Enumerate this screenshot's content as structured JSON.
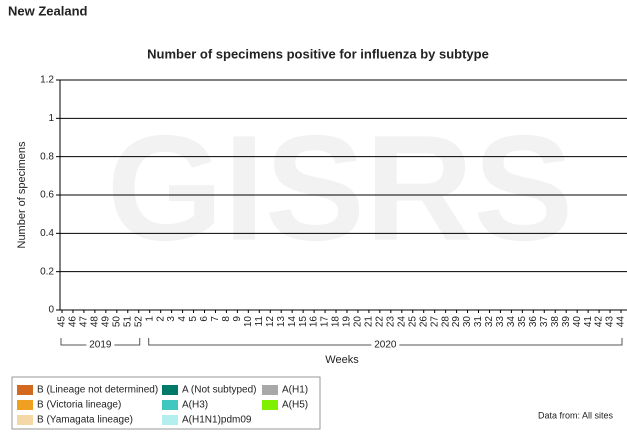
{
  "header": "New Zealand",
  "chart_data": {
    "type": "stacked-bar",
    "title": "Number of specimens positive for influenza by subtype",
    "watermark": "GISRS",
    "xlabel": "Weeks",
    "ylabel": "Number of specimens",
    "note": "Data from: All sites",
    "categories": [
      "45",
      "46",
      "47",
      "48",
      "49",
      "50",
      "51",
      "52",
      "1",
      "2",
      "3",
      "4",
      "5",
      "6",
      "7",
      "8",
      "9",
      "10",
      "11",
      "12",
      "13",
      "14",
      "15",
      "16",
      "17",
      "18",
      "19",
      "20",
      "21",
      "22",
      "23",
      "24",
      "25",
      "26",
      "27",
      "28",
      "29",
      "30",
      "31",
      "32",
      "33",
      "34",
      "35",
      "36",
      "37",
      "38",
      "39",
      "40",
      "41",
      "42",
      "43",
      "44"
    ],
    "x_groups": [
      {
        "label": "2019",
        "count": 8
      },
      {
        "label": "2020",
        "count": 44
      }
    ],
    "ylim": [
      0,
      1.2
    ],
    "yticks": [
      0,
      0.2,
      0.4,
      0.6,
      0.8,
      1,
      1.2
    ],
    "grid": true,
    "series": [
      {
        "name": "B (Lineage not determined)",
        "color": "#d2691e",
        "values": [
          0,
          0,
          0,
          0,
          0,
          0,
          0,
          0,
          0,
          0,
          0,
          0,
          0,
          0,
          0,
          0,
          0,
          0,
          0,
          0,
          0,
          0,
          0,
          0,
          0,
          0,
          0,
          0,
          0,
          0,
          0,
          0,
          0,
          0,
          0,
          0,
          0,
          0,
          0,
          0,
          0,
          0,
          0,
          0,
          0,
          0,
          0,
          0,
          0,
          0,
          0,
          0
        ]
      },
      {
        "name": "B (Victoria lineage)",
        "color": "#f0a020",
        "values": [
          0,
          0,
          0,
          0,
          0,
          0,
          0,
          0,
          0,
          0,
          0,
          0,
          0,
          0,
          0,
          0,
          0,
          0,
          0,
          0,
          0,
          0,
          0,
          0,
          0,
          0,
          0,
          0,
          0,
          0,
          0,
          0,
          0,
          0,
          0,
          0,
          0,
          0,
          0,
          0,
          0,
          0,
          0,
          0,
          0,
          0,
          0,
          0,
          0,
          0,
          0,
          0
        ]
      },
      {
        "name": "B (Yamagata lineage)",
        "color": "#f5d8a8",
        "values": [
          0,
          0,
          0,
          0,
          0,
          0,
          0,
          0,
          0,
          0,
          0,
          0,
          0,
          0,
          0,
          0,
          0,
          0,
          0,
          0,
          0,
          0,
          0,
          0,
          0,
          0,
          0,
          0,
          0,
          0,
          0,
          0,
          0,
          0,
          0,
          0,
          0,
          0,
          0,
          0,
          0,
          0,
          0,
          0,
          0,
          0,
          0,
          0,
          0,
          0,
          0,
          0
        ]
      },
      {
        "name": "A (Not subtyped)",
        "color": "#00796b",
        "values": [
          0,
          0,
          0,
          0,
          0,
          0,
          0,
          0,
          0,
          0,
          0,
          0,
          0,
          0,
          0,
          0,
          0,
          0,
          0,
          0,
          0,
          0,
          0,
          0,
          0,
          0,
          0,
          0,
          0,
          0,
          0,
          0,
          0,
          0,
          0,
          0,
          0,
          0,
          0,
          0,
          0,
          0,
          0,
          0,
          0,
          0,
          0,
          0,
          0,
          0,
          0,
          0
        ]
      },
      {
        "name": "A(H3)",
        "color": "#40c8c0",
        "values": [
          0,
          0,
          0,
          0,
          0,
          0,
          0,
          0,
          0,
          0,
          0,
          0,
          0,
          0,
          0,
          0,
          0,
          0,
          0,
          0,
          0,
          0,
          0,
          0,
          0,
          0,
          0,
          0,
          0,
          0,
          0,
          0,
          0,
          0,
          0,
          0,
          0,
          0,
          0,
          0,
          0,
          0,
          0,
          0,
          0,
          0,
          0,
          0,
          0,
          0,
          0,
          0
        ]
      },
      {
        "name": "A(H1N1)pdm09",
        "color": "#b4eeee",
        "values": [
          0,
          0,
          0,
          0,
          0,
          0,
          0,
          0,
          0,
          0,
          0,
          0,
          0,
          0,
          0,
          0,
          0,
          0,
          0,
          0,
          0,
          0,
          0,
          0,
          0,
          0,
          0,
          0,
          0,
          0,
          0,
          0,
          0,
          0,
          0,
          0,
          0,
          0,
          0,
          0,
          0,
          0,
          0,
          0,
          0,
          0,
          0,
          0,
          0,
          0,
          0,
          0
        ]
      },
      {
        "name": "A(H1)",
        "color": "#a8a8a8",
        "values": [
          0,
          0,
          0,
          0,
          0,
          0,
          0,
          0,
          0,
          0,
          0,
          0,
          0,
          0,
          0,
          0,
          0,
          0,
          0,
          0,
          0,
          0,
          0,
          0,
          0,
          0,
          0,
          0,
          0,
          0,
          0,
          0,
          0,
          0,
          0,
          0,
          0,
          0,
          0,
          0,
          0,
          0,
          0,
          0,
          0,
          0,
          0,
          0,
          0,
          0,
          0,
          0
        ]
      },
      {
        "name": "A(H5)",
        "color": "#80f000",
        "values": [
          0,
          0,
          0,
          0,
          0,
          0,
          0,
          0,
          0,
          0,
          0,
          0,
          0,
          0,
          0,
          0,
          0,
          0,
          0,
          0,
          0,
          0,
          0,
          0,
          0,
          0,
          0,
          0,
          0,
          0,
          0,
          0,
          0,
          0,
          0,
          0,
          0,
          0,
          0,
          0,
          0,
          0,
          0,
          0,
          0,
          0,
          0,
          0,
          0,
          0,
          0,
          0
        ]
      }
    ]
  }
}
